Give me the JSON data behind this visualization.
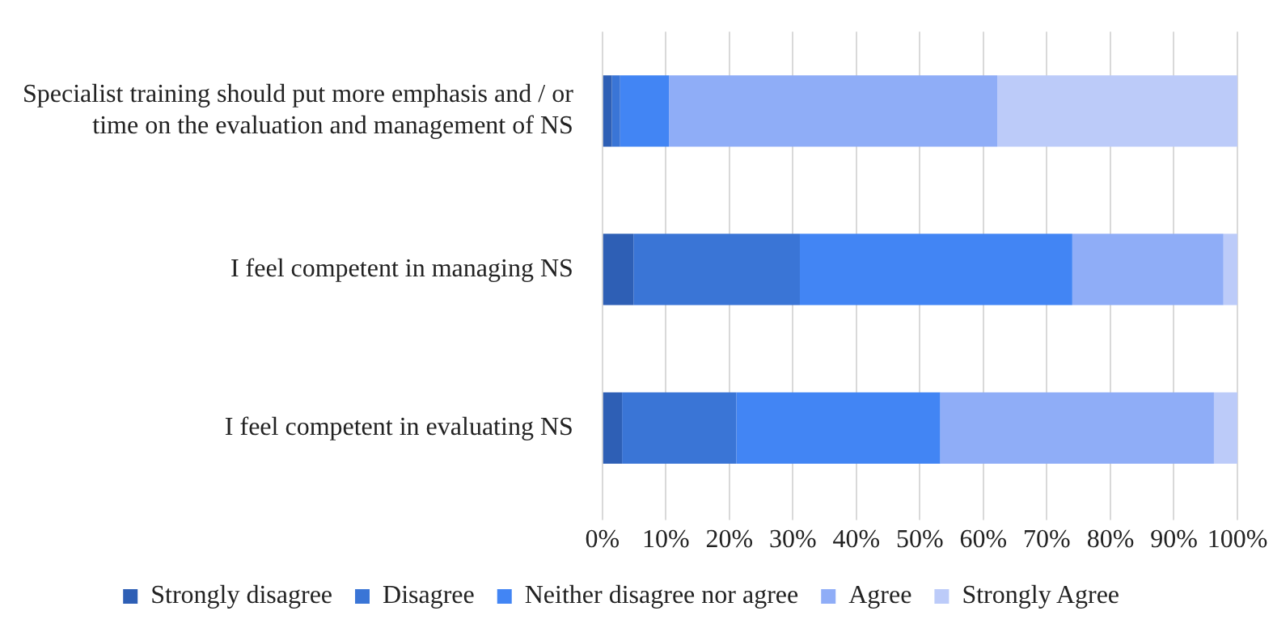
{
  "chart_data": {
    "type": "bar",
    "orientation": "horizontal",
    "stacked": true,
    "categories": [
      "Specialist training should put more emphasis and / or time on the evaluation and management of NS",
      "I feel competent in managing NS",
      "I feel competent in evaluating NS"
    ],
    "series": [
      {
        "name": "Strongly disagree",
        "color": "#2e5fb5",
        "values": [
          1.5,
          4.9,
          3.1
        ]
      },
      {
        "name": "Disagree",
        "color": "#3a75d6",
        "values": [
          1.3,
          26.2,
          18.0
        ]
      },
      {
        "name": "Neither disagree nor agree",
        "color": "#4285f4",
        "values": [
          7.7,
          42.9,
          32.1
        ]
      },
      {
        "name": "Agree",
        "color": "#8fadf7",
        "values": [
          51.7,
          23.8,
          43.1
        ]
      },
      {
        "name": "Strongly Agree",
        "color": "#bccbf9",
        "values": [
          37.8,
          2.2,
          3.7
        ]
      }
    ],
    "xlim": [
      0,
      100
    ],
    "xticks": [
      {
        "value": 0,
        "label": "0%"
      },
      {
        "value": 10,
        "label": "10%"
      },
      {
        "value": 20,
        "label": "20%"
      },
      {
        "value": 30,
        "label": "30%"
      },
      {
        "value": 40,
        "label": "40%"
      },
      {
        "value": 50,
        "label": "50%"
      },
      {
        "value": 60,
        "label": "60%"
      },
      {
        "value": 70,
        "label": "70%"
      },
      {
        "value": 80,
        "label": "80%"
      },
      {
        "value": 90,
        "label": "90%"
      },
      {
        "value": 100,
        "label": "100%"
      }
    ],
    "grid": "x",
    "legend": "bottom"
  }
}
